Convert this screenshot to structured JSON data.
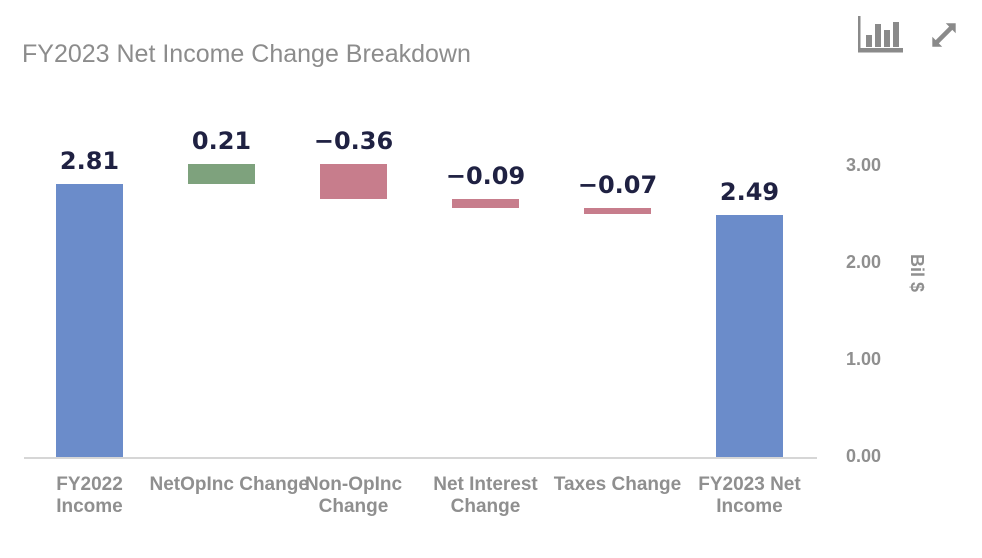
{
  "header": {
    "icons": [
      {
        "name": "bar-chart-icon"
      },
      {
        "name": "expand-icon"
      }
    ],
    "icon_color": "#8a8a8a"
  },
  "chart_data": {
    "type": "bar",
    "subtype": "waterfall",
    "title": "FY2023 Net Income Change Breakdown",
    "ylabel": "Bil $",
    "xlabel": "",
    "ylim": [
      0,
      3.2
    ],
    "grid": false,
    "yticks": [
      "0.00",
      "1.00",
      "2.00",
      "3.00"
    ],
    "categories": [
      "FY2022 Income",
      "NetOpInc Change",
      "Non-OpInc Change",
      "Net Interest Change",
      "Taxes Change",
      "FY2023 Net Income"
    ],
    "bars": [
      {
        "label": "FY2022\nIncome",
        "value_label": "2.81",
        "from": 0,
        "to": 2.81,
        "kind": "total"
      },
      {
        "label": "NetOpInc Change",
        "value_label": "0.21",
        "from": 2.81,
        "to": 3.02,
        "kind": "increase"
      },
      {
        "label": "Non-OpInc\nChange",
        "value_label": "−0.36",
        "from": 3.02,
        "to": 2.66,
        "kind": "decrease"
      },
      {
        "label": "Net Interest\nChange",
        "value_label": "−0.09",
        "from": 2.66,
        "to": 2.57,
        "kind": "decrease"
      },
      {
        "label": "Taxes Change",
        "value_label": "−0.07",
        "from": 2.57,
        "to": 2.5,
        "kind": "decrease"
      },
      {
        "label": "FY2023 Net\nIncome",
        "value_label": "2.49",
        "from": 0,
        "to": 2.49,
        "kind": "total"
      }
    ],
    "colors": {
      "total": "#6b8cca",
      "increase": "#7ea27d",
      "decrease": "#c77d8c",
      "value_label": "#1f2142",
      "axis_text": "#8f8f8f",
      "title_text": "#8c8c8c",
      "axis_line": "#d6d6d6"
    }
  }
}
